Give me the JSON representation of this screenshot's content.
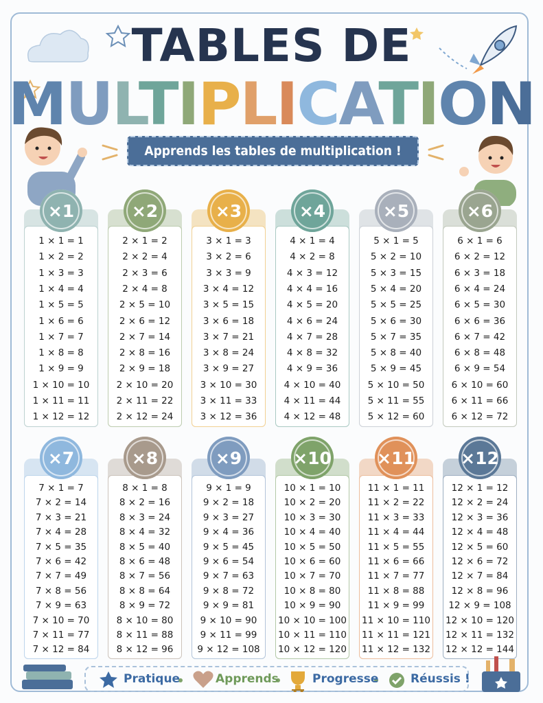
{
  "header": {
    "title_line1": "TABLES DE",
    "title_line2": "MULTIPLICATION",
    "subtitle": "Apprends les tables de multiplication !"
  },
  "tables": [
    {
      "label": "×1",
      "rows": [
        "1 × 1 = 1",
        "1 × 2 = 2",
        "1 × 3 = 3",
        "1 × 4 = 4",
        "1 × 5 = 5",
        "1 × 6 = 6",
        "1 × 7 = 7",
        "1 × 8 = 8",
        "1 × 9 = 9",
        "1 × 10 = 10",
        "1 × 11 = 11",
        "1 × 12 = 12"
      ]
    },
    {
      "label": "×2",
      "rows": [
        "2 × 1 = 2",
        "2 × 2 = 4",
        "2 × 3 = 6",
        "2 × 4 = 8",
        "2 × 5 = 10",
        "2 × 6 = 12",
        "2 × 7 = 14",
        "2 × 8 = 16",
        "2 × 9 = 18",
        "2 × 10 = 20",
        "2 × 11 = 22",
        "2 × 12 = 24"
      ]
    },
    {
      "label": "×3",
      "rows": [
        "3 × 1 = 3",
        "3 × 2 = 6",
        "3 × 3 = 9",
        "3 × 4 = 12",
        "3 × 5 = 15",
        "3 × 6 = 18",
        "3 × 7 = 21",
        "3 × 8 = 24",
        "3 × 9 = 27",
        "3 × 10 = 30",
        "3 × 11 = 33",
        "3 × 12 = 36"
      ]
    },
    {
      "label": "×4",
      "rows": [
        "4 × 1 = 4",
        "4 × 2 = 8",
        "4 × 3 = 12",
        "4 × 4 = 16",
        "4 × 5 = 20",
        "4 × 6 = 24",
        "4 × 7 = 28",
        "4 × 8 = 32",
        "4 × 9 = 36",
        "4 × 10 = 40",
        "4 × 11 = 44",
        "4 × 12 = 48"
      ]
    },
    {
      "label": "×5",
      "rows": [
        "5 × 1 = 5",
        "5 × 2 = 10",
        "5 × 3 = 15",
        "5 × 4 = 20",
        "5 × 5 = 25",
        "5 × 6 = 30",
        "5 × 7 = 35",
        "5 × 8 = 40",
        "5 × 9 = 45",
        "5 × 10 = 50",
        "5 × 11 = 55",
        "5 × 12 = 60"
      ]
    },
    {
      "label": "×6",
      "rows": [
        "6 × 1 = 6",
        "6 × 2 = 12",
        "6 × 3 = 18",
        "6 × 4 = 24",
        "6 × 5 = 30",
        "6 × 6 = 36",
        "6 × 7 = 42",
        "6 × 8 = 48",
        "6 × 9 = 54",
        "6 × 10 = 60",
        "6 × 11 = 66",
        "6 × 12 = 72"
      ]
    },
    {
      "label": "×7",
      "rows": [
        "7 × 1 = 7",
        "7 × 2 = 14",
        "7 × 3 = 21",
        "7 × 4 = 28",
        "7 × 5 = 35",
        "7 × 6 = 42",
        "7 × 7 = 49",
        "7 × 8 = 56",
        "7 × 9 = 63",
        "7 × 10 = 70",
        "7 × 11 = 77",
        "7 × 12 = 84"
      ]
    },
    {
      "label": "×8",
      "rows": [
        "8 × 1 = 8",
        "8 × 2 = 16",
        "8 × 3 = 24",
        "8 × 4 = 32",
        "8 × 5 = 40",
        "8 × 6 = 48",
        "8 × 7 = 56",
        "8 × 8 = 64",
        "8 × 9 = 72",
        "8 × 10 = 80",
        "8 × 11 = 88",
        "8 × 12 = 96"
      ]
    },
    {
      "label": "×9",
      "rows": [
        "9 × 1 = 9",
        "9 × 2 = 18",
        "9 × 3 = 27",
        "9 × 4 = 36",
        "9 × 5 = 45",
        "9 × 6 = 54",
        "9 × 7 = 63",
        "9 × 8 = 72",
        "9 × 9 = 81",
        "9 × 10 = 90",
        "9 × 11 = 99",
        "9 × 12 = 108"
      ]
    },
    {
      "label": "×10",
      "rows": [
        "10 × 1 = 10",
        "10 × 2 = 20",
        "10 × 3 = 30",
        "10 × 4 = 40",
        "10 × 5 = 50",
        "10 × 6 = 60",
        "10 × 7 = 70",
        "10 × 8 = 80",
        "10 × 9 = 90",
        "10 × 10 = 100",
        "10 × 11 = 110",
        "10 × 12 = 120"
      ]
    },
    {
      "label": "×11",
      "rows": [
        "11 × 1 = 11",
        "11 × 2 = 22",
        "11 × 3 = 33",
        "11 × 4 = 44",
        "11 × 5 = 55",
        "11 × 6 = 66",
        "11 × 7 = 77",
        "11 × 8 = 88",
        "11 × 9 = 99",
        "11 × 10 = 110",
        "11 × 11 = 121",
        "11 × 12 = 132"
      ]
    },
    {
      "label": "×12",
      "rows": [
        "12 × 1 = 12",
        "12 × 2 = 24",
        "12 × 3 = 36",
        "12 × 4 = 48",
        "12 × 5 = 60",
        "12 × 6 = 72",
        "12 × 7 = 84",
        "12 × 8 = 96",
        "12 × 9 = 108",
        "12 × 10 = 120",
        "12 × 11 = 132",
        "12 × 12 = 144"
      ]
    }
  ],
  "footer": {
    "items": [
      "Pratique",
      "Apprends",
      "Progresse",
      "Réussis !"
    ]
  }
}
